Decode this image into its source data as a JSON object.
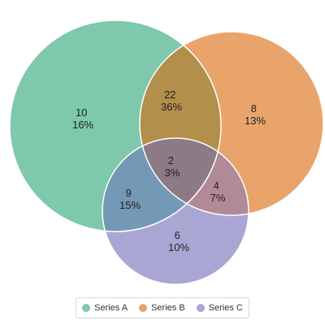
{
  "chart_data": {
    "type": "venn",
    "title": "",
    "sets": [
      {
        "name": "Series A",
        "color": "#7ec8ac"
      },
      {
        "name": "Series B",
        "color": "#e9a46b"
      },
      {
        "name": "Series C",
        "color": "#aaa6d4"
      }
    ],
    "regions": [
      {
        "sets": [
          "Series A"
        ],
        "value": 10,
        "percent": "16%"
      },
      {
        "sets": [
          "Series B"
        ],
        "value": 8,
        "percent": "13%"
      },
      {
        "sets": [
          "Series C"
        ],
        "value": 6,
        "percent": "10%"
      },
      {
        "sets": [
          "Series A",
          "Series B"
        ],
        "value": 22,
        "percent": "36%"
      },
      {
        "sets": [
          "Series A",
          "Series C"
        ],
        "value": 9,
        "percent": "15%"
      },
      {
        "sets": [
          "Series B",
          "Series C"
        ],
        "value": 4,
        "percent": "7%"
      },
      {
        "sets": [
          "Series A",
          "Series B",
          "Series C"
        ],
        "value": 2,
        "percent": "3%"
      }
    ],
    "legend": {
      "position": "bottom",
      "items": [
        "Series A",
        "Series B",
        "Series C"
      ]
    }
  }
}
